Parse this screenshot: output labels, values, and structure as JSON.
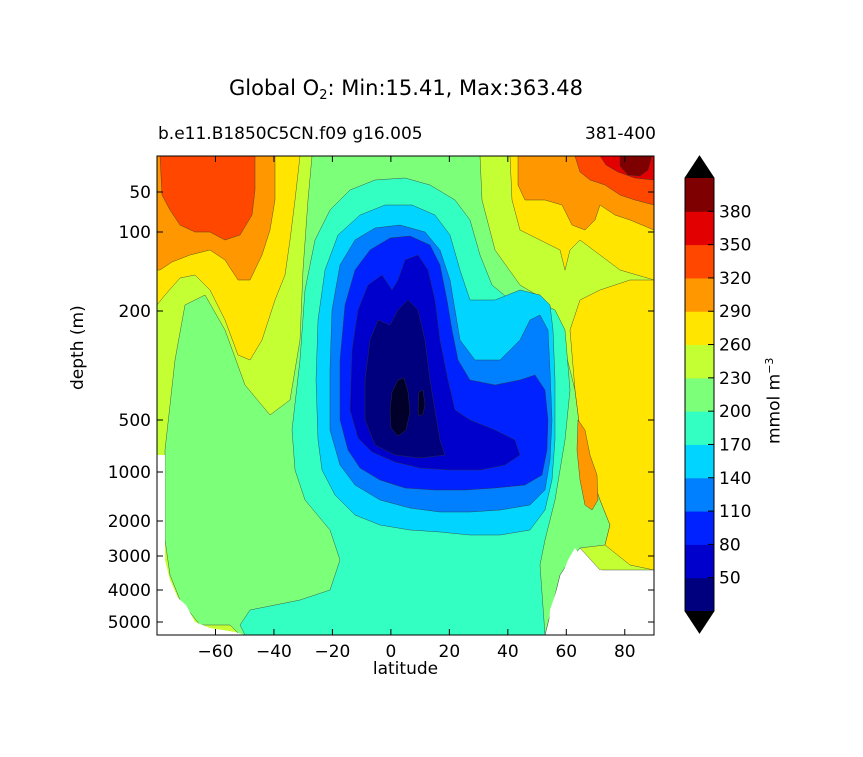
{
  "chart_data": {
    "type": "contour",
    "title_main": "Global O",
    "title_sub": "2",
    "title_stats": ": Min:15.41, Max:363.48",
    "subtitle_left": "b.e11.B1850C5CN.f09 g16.005",
    "subtitle_right": "381-400",
    "xlabel": "latitude",
    "ylabel": "depth (m)",
    "xlim": [
      -80,
      90
    ],
    "y_scale": "log",
    "ylim": [
      5500,
      0
    ],
    "x_ticks": [
      -60,
      -40,
      -20,
      0,
      20,
      40,
      60,
      80
    ],
    "x_tick_labels": [
      "−60",
      "−40",
      "−20",
      "0",
      "20",
      "40",
      "60",
      "80"
    ],
    "y_ticks": [
      50,
      100,
      200,
      500,
      1000,
      2000,
      3000,
      4000,
      5000
    ],
    "y_tick_labels": [
      "50",
      "100",
      "200",
      "500",
      "1000",
      "2000",
      "3000",
      "4000",
      "5000"
    ],
    "levels": [
      20,
      50,
      80,
      110,
      140,
      170,
      200,
      230,
      260,
      290,
      320,
      350,
      380
    ],
    "colorbar": {
      "tick_labels": [
        "50",
        "80",
        "110",
        "140",
        "170",
        "200",
        "230",
        "260",
        "290",
        "320",
        "350",
        "380"
      ],
      "label_main": "mmol m",
      "label_exp": "−3",
      "extend": "both",
      "colors": [
        "#00007f",
        "#0000cc",
        "#0022ff",
        "#0080ff",
        "#00d4ff",
        "#33ffc3",
        "#7cff79",
        "#c3ff33",
        "#ffe500",
        "#ff9700",
        "#ff4700",
        "#e30000",
        "#7f0000"
      ],
      "under_color": "#000000",
      "over_color": "#000000"
    },
    "lowest_region": {
      "label": "< 20",
      "color": "#00002a"
    }
  }
}
